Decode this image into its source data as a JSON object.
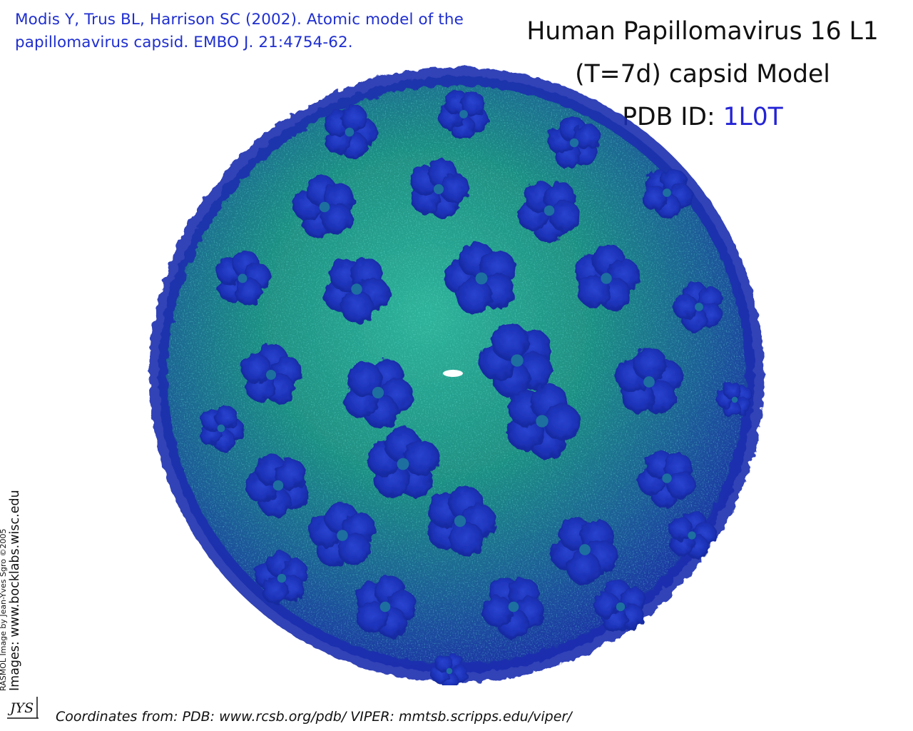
{
  "citation": {
    "line1": "Modis Y, Trus BL, Harrison SC (2002).  Atomic model of the",
    "line2": "papillomavirus capsid.  EMBO J. 21:4754-62."
  },
  "title": {
    "line1": "Human Papillomavirus 16 L1",
    "line2": "(T=7d) capsid Model",
    "pdb_prefix": "PDB ID: ",
    "pdb_id": "1L0T"
  },
  "credit": {
    "line1": "RASMOL Image by Jean-Yves Sgro ©2005",
    "line2": "Images: www.bocklabs.wisc.edu"
  },
  "logo": {
    "text": "JYS"
  },
  "footer": {
    "text": "Coordinates from:  PDB: www.rcsb.org/pdb/   VIPER: mmtsb.scripps.edu/viper/"
  },
  "colors": {
    "citation": "#1f2fd0",
    "pdb_id": "#2424d6",
    "capsomer": "#1a2fc0",
    "lattice": "#1f9a86"
  }
}
